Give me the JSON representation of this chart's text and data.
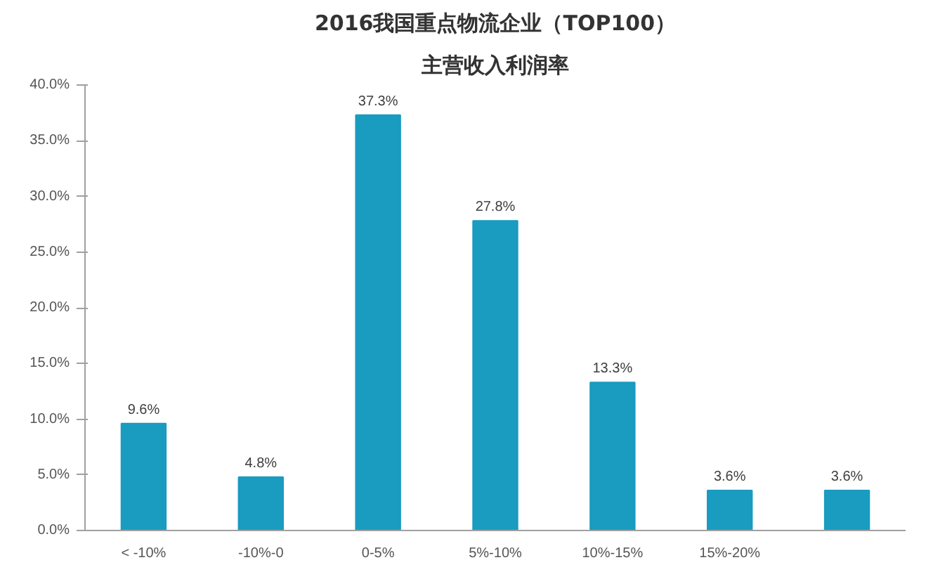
{
  "chart_data": {
    "type": "bar",
    "title": "2016我国重点物流企业（TOP100）",
    "subtitle": "主营收入利润率",
    "categories": [
      "< -10%",
      "-10%-0",
      "0-5%",
      "5%-10%",
      "10%-15%",
      "15%-20%",
      null
    ],
    "values": [
      9.6,
      4.8,
      37.3,
      27.8,
      13.3,
      3.6,
      3.6
    ],
    "value_labels": [
      "9.6%",
      "4.8%",
      "37.3%",
      "27.8%",
      "13.3%",
      "3.6%",
      "3.6%"
    ],
    "color": "#1a9bc0",
    "ylim": [
      0,
      40
    ],
    "yticks": [
      {
        "value": 0,
        "label": "0.0%"
      },
      {
        "value": 5,
        "label": "5.0%"
      },
      {
        "value": 10,
        "label": "10.0%"
      },
      {
        "value": 15,
        "label": "15.0%"
      },
      {
        "value": 20,
        "label": "20.0%"
      },
      {
        "value": 25,
        "label": "25.0%"
      },
      {
        "value": 30,
        "label": "30.0%"
      },
      {
        "value": 35,
        "label": "35.0%"
      },
      {
        "value": 40,
        "label": "40.0%"
      }
    ],
    "grid": false
  }
}
